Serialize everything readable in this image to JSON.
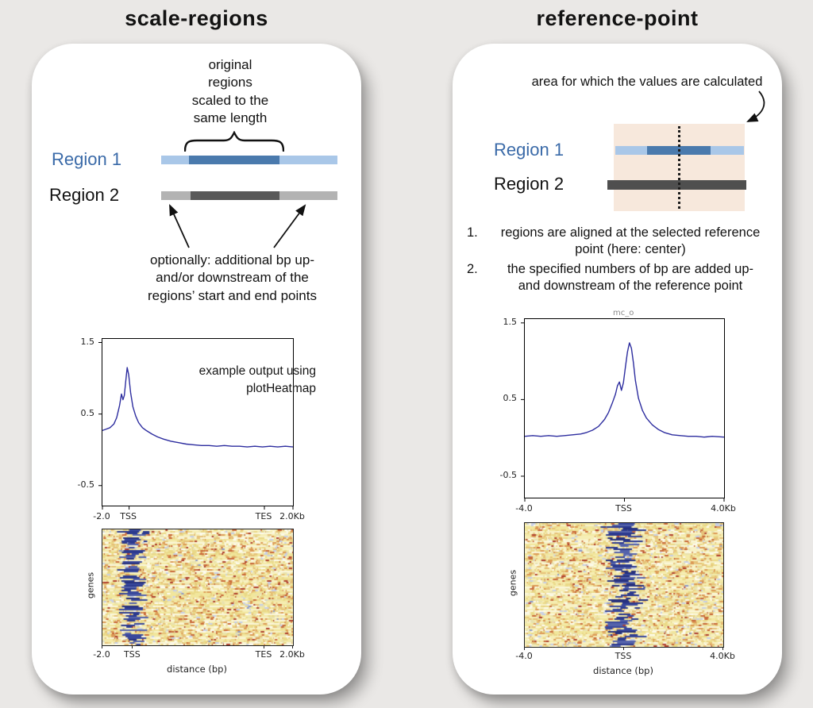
{
  "colors": {
    "page_bg": "#eae8e6",
    "card_bg": "#ffffff",
    "blue_label": "#3a6aa8",
    "region1_light": "#a9c7e8",
    "region1_dark": "#4a7aad",
    "region2_light": "#b3b3b3",
    "region2_dark": "#595959",
    "region2_solid": "#4f4f4f",
    "shaded_area": "#f7e8dc",
    "line_color": "#2d2d9f",
    "heat_base": "#f5ecab",
    "heat_band": "#2c3a8e"
  },
  "left_panel": {
    "title": "scale-regions",
    "top_annotation": "original\nregions\nscaled to the\nsame length",
    "region1_label": "Region 1",
    "region2_label": "Region 2",
    "bottom_annotation": "optionally: additional bp up-\nand/or downstream of the\nregions’ start and end points",
    "plot_note": "example output using\nplotHeatmap"
  },
  "right_panel": {
    "title": "reference-point",
    "top_annotation": "area for which the values are calculated",
    "region1_label": "Region 1",
    "region2_label": "Region 2",
    "list1_num": "1.",
    "list1_text": "regions are aligned at the selected reference\npoint (here: center)",
    "list2_num": "2.",
    "list2_text": "the specified numbers of bp are added up-\nand downstream of the reference point",
    "plot_title_fragment": "mc_o"
  },
  "chart_data": [
    {
      "id": "sr_profile",
      "type": "line",
      "title": "",
      "ylim": [
        -0.78,
        1.55
      ],
      "yticks": [
        1.5,
        0.5,
        -0.5
      ],
      "xticks": [
        {
          "pos": 0,
          "label": "-2.0"
        },
        {
          "pos": 0.14,
          "label": "TSS"
        },
        {
          "pos": 0.85,
          "label": "TES"
        },
        {
          "pos": 1,
          "label": "2.0Kb"
        }
      ],
      "x": [
        0,
        0.02,
        0.04,
        0.06,
        0.075,
        0.09,
        0.1,
        0.108,
        0.115,
        0.122,
        0.13,
        0.138,
        0.148,
        0.16,
        0.175,
        0.19,
        0.21,
        0.23,
        0.26,
        0.29,
        0.32,
        0.36,
        0.4,
        0.44,
        0.48,
        0.52,
        0.56,
        0.6,
        0.64,
        0.68,
        0.72,
        0.76,
        0.8,
        0.84,
        0.88,
        0.92,
        0.96,
        1.0
      ],
      "y": [
        0.27,
        0.29,
        0.31,
        0.36,
        0.45,
        0.62,
        0.78,
        0.7,
        0.76,
        0.95,
        1.15,
        1.05,
        0.8,
        0.6,
        0.47,
        0.38,
        0.31,
        0.27,
        0.22,
        0.18,
        0.15,
        0.12,
        0.1,
        0.08,
        0.07,
        0.06,
        0.06,
        0.05,
        0.06,
        0.05,
        0.05,
        0.04,
        0.05,
        0.04,
        0.05,
        0.04,
        0.05,
        0.04
      ]
    },
    {
      "id": "rp_profile",
      "type": "line",
      "title": "",
      "ylim": [
        -0.78,
        1.55
      ],
      "yticks": [
        1.5,
        0.5,
        -0.5
      ],
      "xticks": [
        {
          "pos": 0,
          "label": "-4.0"
        },
        {
          "pos": 0.5,
          "label": "TSS"
        },
        {
          "pos": 1,
          "label": "4.0Kb"
        }
      ],
      "x": [
        0,
        0.04,
        0.08,
        0.12,
        0.16,
        0.2,
        0.24,
        0.28,
        0.31,
        0.34,
        0.37,
        0.4,
        0.42,
        0.44,
        0.455,
        0.465,
        0.475,
        0.485,
        0.495,
        0.505,
        0.515,
        0.525,
        0.535,
        0.545,
        0.555,
        0.57,
        0.59,
        0.61,
        0.64,
        0.67,
        0.7,
        0.74,
        0.78,
        0.82,
        0.86,
        0.9,
        0.94,
        1.0
      ],
      "y": [
        0.02,
        0.03,
        0.02,
        0.03,
        0.02,
        0.03,
        0.04,
        0.05,
        0.07,
        0.1,
        0.15,
        0.24,
        0.33,
        0.46,
        0.57,
        0.68,
        0.73,
        0.62,
        0.72,
        0.93,
        1.12,
        1.24,
        1.17,
        0.98,
        0.75,
        0.52,
        0.36,
        0.26,
        0.17,
        0.11,
        0.07,
        0.04,
        0.03,
        0.02,
        0.02,
        0.01,
        0.02,
        0.01
      ]
    },
    {
      "id": "sr_heatmap",
      "type": "heatmap",
      "ylabel": "genes",
      "xlabel": "distance (bp)",
      "xticks": [
        {
          "pos": 0,
          "label": "-2.0"
        },
        {
          "pos": 0.16,
          "label": "TSS"
        },
        {
          "pos": 0.85,
          "label": "TES"
        },
        {
          "pos": 1,
          "label": "2.0Kb"
        }
      ],
      "band_center": 0.16,
      "band_spread": 0.045,
      "band_strength": 0.8,
      "seed": 7
    },
    {
      "id": "rp_heatmap",
      "type": "heatmap",
      "ylabel": "genes",
      "xlabel": "distance (bp)",
      "xticks": [
        {
          "pos": 0,
          "label": "-4.0"
        },
        {
          "pos": 0.5,
          "label": "TSS"
        },
        {
          "pos": 1,
          "label": "4.0Kb"
        }
      ],
      "band_center": 0.5,
      "band_spread": 0.07,
      "band_strength": 0.95,
      "seed": 13
    }
  ]
}
